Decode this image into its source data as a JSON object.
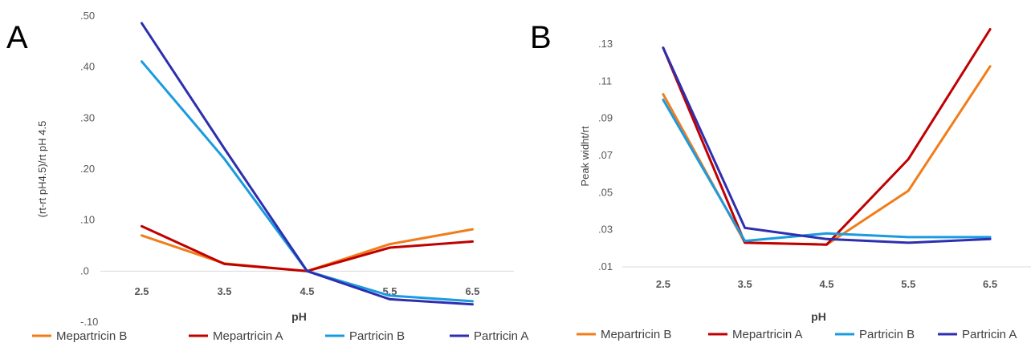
{
  "chart_data": [
    {
      "panel": "A",
      "type": "line",
      "xlabel": "pH",
      "ylabel": "(rt-rt pH4.5)/rt pH 4.5",
      "ylim": [
        -0.1,
        0.5
      ],
      "yticks": [
        ".50",
        ".40",
        ".30",
        ".20",
        ".10",
        ".0",
        "-.10"
      ],
      "ytick_values": [
        0.5,
        0.4,
        0.3,
        0.2,
        0.1,
        0.0,
        -0.1
      ],
      "categories": [
        "2.5",
        "3.5",
        "4.5",
        "5.5",
        "6.5"
      ],
      "grid": false,
      "legend": "bottom",
      "series": [
        {
          "name": "Mepartricin B",
          "color": "#F07D1A",
          "values": [
            0.07,
            0.015,
            0.0,
            0.053,
            0.082
          ]
        },
        {
          "name": "Mepartricin A",
          "color": "#C00000",
          "values": [
            0.088,
            0.014,
            0.0,
            0.046,
            0.058
          ]
        },
        {
          "name": "Partricin B",
          "color": "#1A9BE0",
          "values": [
            0.411,
            0.22,
            0.0,
            -0.048,
            -0.059
          ]
        },
        {
          "name": "Partricin A",
          "color": "#2E2EB0",
          "values": [
            0.486,
            0.24,
            0.0,
            -0.055,
            -0.065
          ]
        }
      ]
    },
    {
      "panel": "B",
      "type": "line",
      "xlabel": "pH",
      "ylabel": "Peak widht/rt",
      "ylim": [
        0.01,
        0.13
      ],
      "yticks": [
        ".13",
        ".11",
        ".09",
        ".07",
        ".05",
        ".03",
        ".01"
      ],
      "ytick_values": [
        0.13,
        0.11,
        0.09,
        0.07,
        0.05,
        0.03,
        0.01
      ],
      "categories": [
        "2.5",
        "3.5",
        "4.5",
        "5.5",
        "6.5"
      ],
      "grid": false,
      "legend": "bottom",
      "series": [
        {
          "name": "Mepartricin B",
          "color": "#F07D1A",
          "values": [
            0.103,
            0.023,
            0.022,
            0.051,
            0.118
          ]
        },
        {
          "name": "Mepartricin A",
          "color": "#C00000",
          "values": [
            0.128,
            0.023,
            0.022,
            0.068,
            0.138
          ]
        },
        {
          "name": "Partricin B",
          "color": "#1A9BE0",
          "values": [
            0.1,
            0.024,
            0.028,
            0.026,
            0.026
          ]
        },
        {
          "name": "Partricin A",
          "color": "#2E2EB0",
          "values": [
            0.128,
            0.031,
            0.025,
            0.023,
            0.025
          ]
        }
      ]
    }
  ]
}
